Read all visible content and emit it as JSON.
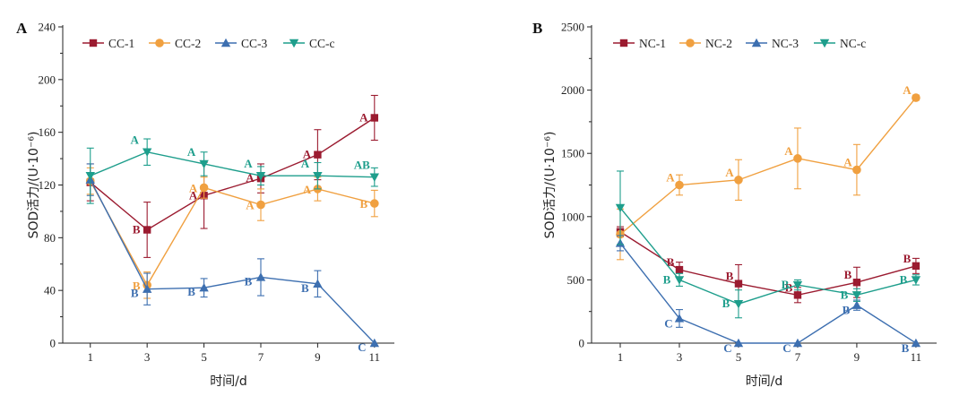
{
  "chart_data": [
    {
      "panel": "A",
      "type": "line",
      "xlabel": "时间/d",
      "ylabel": "SOD活力/(U·10⁻⁶)",
      "x": [
        1,
        3,
        5,
        7,
        9,
        11
      ],
      "xticks": [
        "1",
        "3",
        "5",
        "7",
        "9",
        "11"
      ],
      "ylim": [
        0,
        240
      ],
      "yticks": [
        0,
        40,
        80,
        120,
        160,
        200,
        240
      ],
      "legend_position": "top-left",
      "series": [
        {
          "name": "CC-1",
          "color": "#9b1b30",
          "marker": "square",
          "values": [
            122,
            86,
            112,
            125,
            143,
            171
          ],
          "errors": [
            14,
            21,
            25,
            11,
            19,
            17
          ],
          "labels": [
            "",
            "B",
            "A",
            "A",
            "A",
            "A"
          ]
        },
        {
          "name": "CC-2",
          "color": "#f0a040",
          "marker": "circle",
          "values": [
            123,
            44,
            118,
            105,
            117,
            106
          ],
          "errors": [
            10,
            10,
            8,
            12,
            9,
            10
          ],
          "labels": [
            "",
            "B",
            "A",
            "A",
            "A",
            "B"
          ]
        },
        {
          "name": "CC-3",
          "color": "#3d6fb0",
          "marker": "triangle-up",
          "values": [
            124,
            41,
            42,
            50,
            45,
            0
          ],
          "errors": [
            12,
            12,
            7,
            14,
            10,
            0
          ],
          "labels": [
            "",
            "B",
            "B",
            "B",
            "B",
            "C"
          ]
        },
        {
          "name": "CC-c",
          "color": "#1e9e8c",
          "marker": "triangle-down",
          "values": [
            127,
            145,
            136,
            127,
            127,
            126
          ],
          "errors": [
            21,
            10,
            9,
            7,
            10,
            7
          ],
          "labels": [
            "",
            "A",
            "A",
            "A",
            "A",
            "AB"
          ]
        }
      ]
    },
    {
      "panel": "B",
      "type": "line",
      "xlabel": "时间/d",
      "ylabel": "SOD活力/(U·10⁻⁶)",
      "x": [
        1,
        3,
        5,
        7,
        9,
        11
      ],
      "xticks": [
        "1",
        "3",
        "5",
        "7",
        "9",
        "11"
      ],
      "ylim": [
        0,
        2500
      ],
      "yticks": [
        0,
        500,
        1000,
        1500,
        2000,
        2500
      ],
      "legend_position": "top-left",
      "series": [
        {
          "name": "NC-1",
          "color": "#9b1b30",
          "marker": "square",
          "values": [
            880,
            580,
            470,
            380,
            480,
            610
          ],
          "errors": [
            40,
            60,
            150,
            60,
            120,
            60
          ],
          "labels": [
            "",
            "B",
            "B",
            "B",
            "B",
            "B"
          ]
        },
        {
          "name": "NC-2",
          "color": "#f0a040",
          "marker": "circle",
          "values": [
            860,
            1250,
            1290,
            1460,
            1370,
            1940
          ],
          "errors": [
            200,
            80,
            160,
            240,
            200,
            20
          ],
          "labels": [
            "",
            "A",
            "A",
            "A",
            "A",
            "A"
          ]
        },
        {
          "name": "NC-3",
          "color": "#3d6fb0",
          "marker": "triangle-up",
          "values": [
            790,
            195,
            0,
            0,
            300,
            0
          ],
          "errors": [
            60,
            70,
            0,
            0,
            40,
            0
          ],
          "labels": [
            "",
            "C",
            "C",
            "C",
            "B",
            "B"
          ]
        },
        {
          "name": "NC-c",
          "color": "#1e9e8c",
          "marker": "triangle-down",
          "values": [
            1070,
            500,
            310,
            460,
            380,
            500
          ],
          "errors": [
            290,
            50,
            110,
            40,
            50,
            40
          ],
          "labels": [
            "",
            "B",
            "B",
            "B",
            "B",
            "B"
          ]
        }
      ]
    }
  ]
}
